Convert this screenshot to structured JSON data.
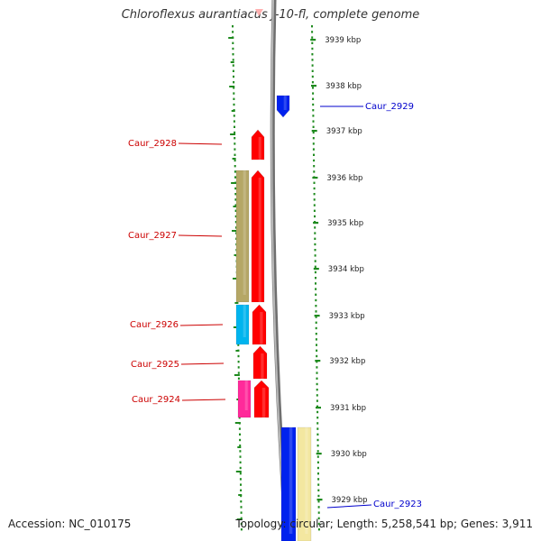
{
  "title": "Chloroflexus aurantiacus J-10-fl, complete genome",
  "accession": "Accession: NC_010175",
  "topology": "Topology: circular; Length: 5,258,541 bp; Genes: 3,911",
  "colors": {
    "tick": "#1e8a1e",
    "backbone": "#8a8a8a",
    "label_red": "#cc0000",
    "label_blue": "#0000cc",
    "gene_red": "#ff0000",
    "gene_blue": "#0022ee",
    "olive": "#b5a766",
    "cyan": "#00b4ee",
    "pink": "#ff2a9a",
    "pale_yellow": "#f3e7a0"
  },
  "scale": {
    "unit": "kbp",
    "ticks": [
      {
        "label": "3939 kbp"
      },
      {
        "label": "3938 kbp"
      },
      {
        "label": "3937 kbp"
      },
      {
        "label": "3936 kbp"
      },
      {
        "label": "3935 kbp"
      },
      {
        "label": "3934 kbp"
      },
      {
        "label": "3933 kbp"
      },
      {
        "label": "3932 kbp"
      },
      {
        "label": "3931 kbp"
      },
      {
        "label": "3930 kbp"
      },
      {
        "label": "3929 kbp"
      }
    ]
  },
  "genes": [
    {
      "label": "Caur_2929",
      "strand": "reverse",
      "color": "blue"
    },
    {
      "label": "Caur_2928",
      "strand": "forward",
      "color": "red"
    },
    {
      "label": "Caur_2927",
      "strand": "forward",
      "color": "red"
    },
    {
      "label": "Caur_2926",
      "strand": "forward",
      "color": "red"
    },
    {
      "label": "Caur_2925",
      "strand": "forward",
      "color": "red"
    },
    {
      "label": "Caur_2924",
      "strand": "forward",
      "color": "red"
    },
    {
      "label": "Caur_2923",
      "strand": "reverse",
      "color": "blue"
    }
  ]
}
